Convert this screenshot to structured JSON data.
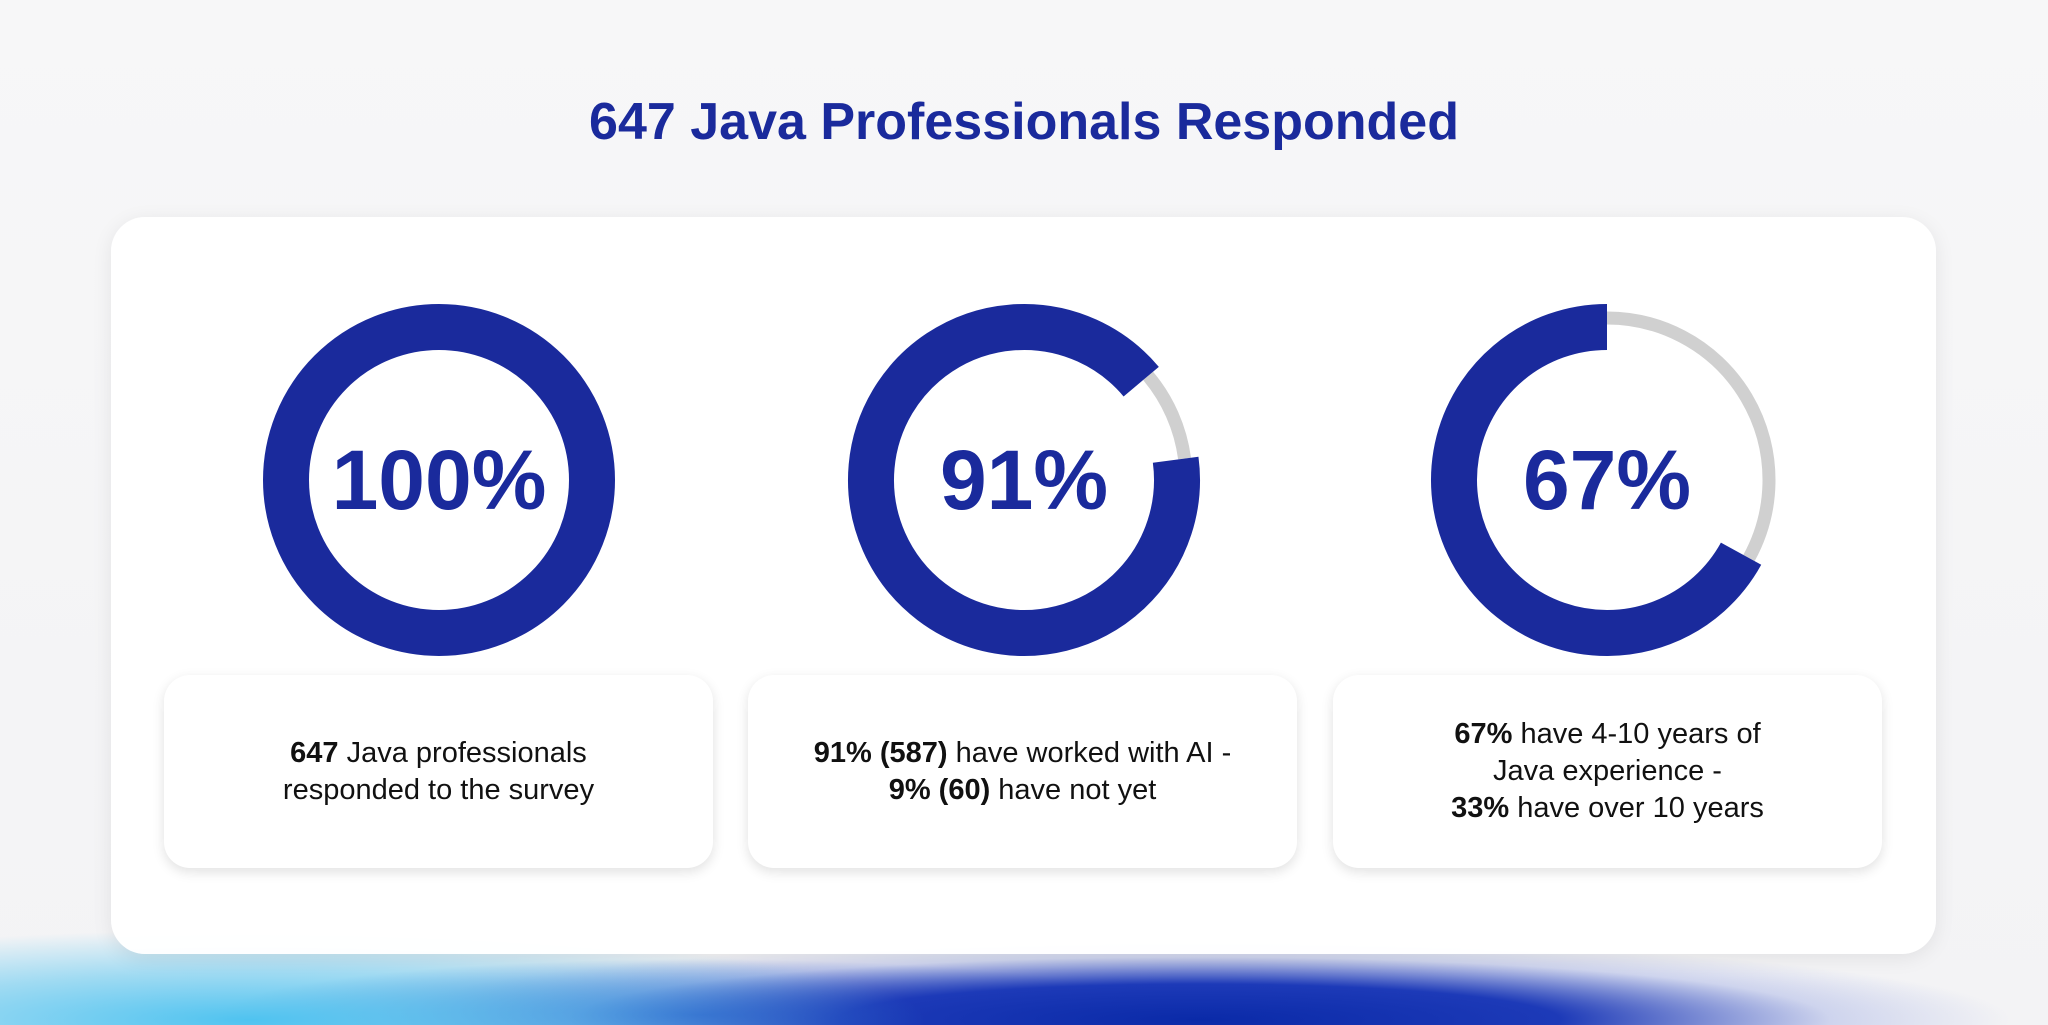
{
  "title": "647 Java Professionals Responded",
  "colors": {
    "accent": "#1a2a9c",
    "track": "#d0d0d0"
  },
  "chart_data": [
    {
      "type": "pie",
      "variant": "donut",
      "value": 100,
      "label": "100%",
      "caption": [
        {
          "b": "647",
          "t": " Java professionals"
        },
        {
          "b": "",
          "t": "responded to the survey"
        }
      ]
    },
    {
      "type": "pie",
      "variant": "donut",
      "value": 91,
      "label": "91%",
      "caption": [
        {
          "b": "91% (587)",
          "t": " have worked with AI -"
        },
        {
          "b": "9% (60)",
          "t": " have not yet"
        }
      ]
    },
    {
      "type": "pie",
      "variant": "donut",
      "value": 67,
      "label": "67%",
      "caption": [
        {
          "b": "67%",
          "t": " have 4-10 years of"
        },
        {
          "b": "",
          "t": "Java experience -"
        },
        {
          "b": "33%",
          "t": " have over 10 years"
        }
      ]
    }
  ]
}
